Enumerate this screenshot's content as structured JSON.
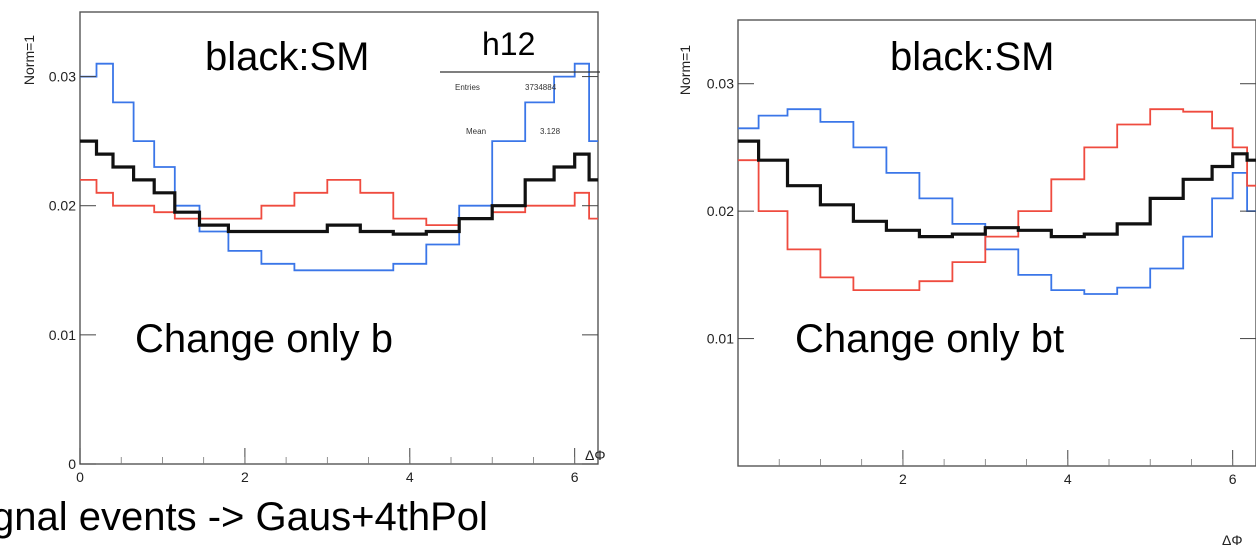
{
  "caption": "gnal events -> Gaus+4thPol",
  "chart_data": [
    {
      "type": "line",
      "step": true,
      "title": "",
      "xlabel": "ΔΦ",
      "ylabel": "Norm=1",
      "xlim": [
        0,
        6.283
      ],
      "ylim": [
        0,
        0.035
      ],
      "x_ticks": [
        "0",
        "2",
        "4",
        "6"
      ],
      "y_ticks": [
        "0",
        "0.01",
        "0.02",
        "0.03"
      ],
      "annotations": [
        "black:SM",
        "Change only b"
      ],
      "stats_box": {
        "name": "h12",
        "entries_label": "Entries",
        "entries_value": "3734884",
        "mean_label": "Mean",
        "mean_value": "3.128"
      },
      "x": [
        0.1,
        0.3,
        0.5,
        0.8,
        1.0,
        1.3,
        1.6,
        2.0,
        2.4,
        2.8,
        3.2,
        3.6,
        4.0,
        4.4,
        4.8,
        5.2,
        5.6,
        5.9,
        6.1,
        6.25
      ],
      "series": [
        {
          "color": "#3a76e8",
          "values": [
            0.03,
            0.031,
            0.028,
            0.025,
            0.023,
            0.02,
            0.018,
            0.0165,
            0.0155,
            0.015,
            0.015,
            0.015,
            0.0155,
            0.017,
            0.02,
            0.025,
            0.028,
            0.03,
            0.031,
            0.025
          ]
        },
        {
          "color": "#ef4b3f",
          "values": [
            0.022,
            0.021,
            0.02,
            0.02,
            0.0195,
            0.019,
            0.019,
            0.019,
            0.02,
            0.021,
            0.022,
            0.021,
            0.019,
            0.0185,
            0.019,
            0.0195,
            0.02,
            0.02,
            0.021,
            0.019
          ]
        },
        {
          "color": "#111111",
          "values": [
            0.025,
            0.024,
            0.023,
            0.022,
            0.021,
            0.0195,
            0.0185,
            0.018,
            0.018,
            0.018,
            0.0185,
            0.018,
            0.0178,
            0.018,
            0.019,
            0.02,
            0.022,
            0.023,
            0.024,
            0.022
          ]
        }
      ]
    },
    {
      "type": "line",
      "step": true,
      "title": "",
      "xlabel": "ΔΦ",
      "ylabel": "Norm=1",
      "xlim": [
        0,
        6.283
      ],
      "ylim": [
        0,
        0.035
      ],
      "x_ticks": [
        "2",
        "4",
        "6"
      ],
      "y_ticks": [
        "0.01",
        "0.02",
        "0.03"
      ],
      "annotations": [
        "black:SM",
        "Change only bt"
      ],
      "x": [
        0.1,
        0.4,
        0.8,
        1.2,
        1.6,
        2.0,
        2.4,
        2.8,
        3.2,
        3.6,
        4.0,
        4.4,
        4.8,
        5.2,
        5.6,
        5.9,
        6.1,
        6.25
      ],
      "series": [
        {
          "color": "#3a76e8",
          "values": [
            0.0265,
            0.0275,
            0.028,
            0.027,
            0.025,
            0.023,
            0.021,
            0.019,
            0.017,
            0.015,
            0.0138,
            0.0135,
            0.014,
            0.0155,
            0.018,
            0.021,
            0.023,
            0.02
          ]
        },
        {
          "color": "#ef4b3f",
          "values": [
            0.024,
            0.02,
            0.017,
            0.0148,
            0.0138,
            0.0138,
            0.0145,
            0.016,
            0.018,
            0.02,
            0.0225,
            0.025,
            0.0268,
            0.028,
            0.0278,
            0.0265,
            0.025,
            0.022
          ]
        },
        {
          "color": "#111111",
          "values": [
            0.0255,
            0.024,
            0.022,
            0.0205,
            0.0192,
            0.0185,
            0.018,
            0.0182,
            0.0187,
            0.0185,
            0.018,
            0.0182,
            0.019,
            0.021,
            0.0225,
            0.0235,
            0.0245,
            0.024
          ]
        }
      ]
    }
  ]
}
